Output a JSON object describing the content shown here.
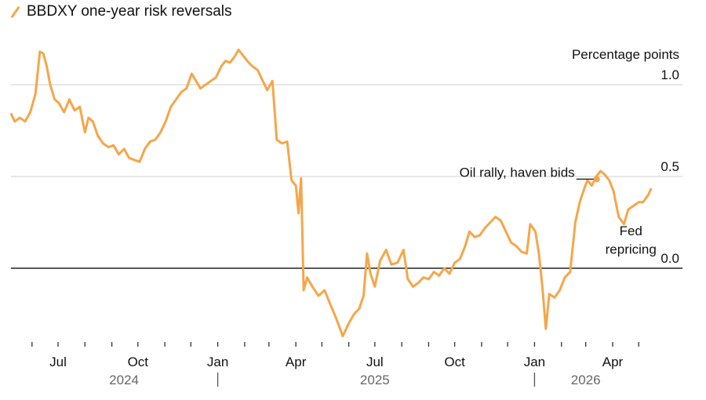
{
  "legend": {
    "label": "BBDXY one-year risk reversals",
    "icon": "line-swatch-icon"
  },
  "chart_data": {
    "type": "line",
    "title": "",
    "ylabel": "Percentage points",
    "ylim": [
      -0.75,
      1.45
    ],
    "yticks": [
      {
        "value": 1.0,
        "label": "1.0"
      },
      {
        "value": 0.5,
        "label": "0.5"
      },
      {
        "value": 0.0,
        "label": "0.0"
      }
    ],
    "xticks": [
      {
        "date": "2024-07-01",
        "label": "Jul"
      },
      {
        "date": "2024-10-01",
        "label": "Oct"
      },
      {
        "date": "2025-01-01",
        "label": "Jan"
      },
      {
        "date": "2025-04-01",
        "label": "Apr"
      },
      {
        "date": "2025-07-01",
        "label": "Jul"
      },
      {
        "date": "2025-10-01",
        "label": "Oct"
      },
      {
        "date": "2026-01-01",
        "label": "Jan"
      },
      {
        "date": "2026-04-01",
        "label": "Apr"
      }
    ],
    "years": [
      {
        "label": "2024",
        "center": "2024-09-15"
      },
      {
        "label": "2025",
        "center": "2025-07-01"
      },
      {
        "label": "2026",
        "center": "2026-03-01"
      }
    ],
    "year_separators": [
      "2025-01-01",
      "2026-01-01"
    ],
    "x_range": [
      "2024-05-01",
      "2026-06-25"
    ],
    "zero_line": 0.0,
    "grid": true,
    "color": "#f5a64a",
    "series": [
      {
        "points": [
          [
            "2024-05-08",
            0.84
          ],
          [
            "2024-05-12",
            0.8
          ],
          [
            "2024-05-18",
            0.82
          ],
          [
            "2024-05-24",
            0.8
          ],
          [
            "2024-05-30",
            0.85
          ],
          [
            "2024-06-05",
            0.95
          ],
          [
            "2024-06-10",
            1.18
          ],
          [
            "2024-06-14",
            1.17
          ],
          [
            "2024-06-18",
            1.1
          ],
          [
            "2024-06-22",
            1.0
          ],
          [
            "2024-06-27",
            0.92
          ],
          [
            "2024-07-02",
            0.9
          ],
          [
            "2024-07-08",
            0.85
          ],
          [
            "2024-07-14",
            0.92
          ],
          [
            "2024-07-20",
            0.86
          ],
          [
            "2024-07-26",
            0.88
          ],
          [
            "2024-08-01",
            0.74
          ],
          [
            "2024-08-05",
            0.82
          ],
          [
            "2024-08-10",
            0.8
          ],
          [
            "2024-08-16",
            0.72
          ],
          [
            "2024-08-22",
            0.68
          ],
          [
            "2024-08-28",
            0.66
          ],
          [
            "2024-09-03",
            0.67
          ],
          [
            "2024-09-09",
            0.62
          ],
          [
            "2024-09-15",
            0.65
          ],
          [
            "2024-09-21",
            0.6
          ],
          [
            "2024-09-27",
            0.59
          ],
          [
            "2024-10-03",
            0.58
          ],
          [
            "2024-10-09",
            0.65
          ],
          [
            "2024-10-15",
            0.69
          ],
          [
            "2024-10-21",
            0.7
          ],
          [
            "2024-10-27",
            0.74
          ],
          [
            "2024-11-02",
            0.8
          ],
          [
            "2024-11-08",
            0.88
          ],
          [
            "2024-11-14",
            0.92
          ],
          [
            "2024-11-20",
            0.96
          ],
          [
            "2024-11-26",
            0.98
          ],
          [
            "2024-12-02",
            1.06
          ],
          [
            "2024-12-07",
            1.02
          ],
          [
            "2024-12-12",
            0.98
          ],
          [
            "2024-12-18",
            1.0
          ],
          [
            "2024-12-24",
            1.02
          ],
          [
            "2024-12-30",
            1.04
          ],
          [
            "2025-01-05",
            1.1
          ],
          [
            "2025-01-10",
            1.13
          ],
          [
            "2025-01-15",
            1.12
          ],
          [
            "2025-01-20",
            1.15
          ],
          [
            "2025-01-25",
            1.19
          ],
          [
            "2025-01-30",
            1.16
          ],
          [
            "2025-02-04",
            1.13
          ],
          [
            "2025-02-10",
            1.1
          ],
          [
            "2025-02-16",
            1.08
          ],
          [
            "2025-02-22",
            1.02
          ],
          [
            "2025-02-27",
            0.97
          ],
          [
            "2025-03-05",
            1.02
          ],
          [
            "2025-03-10",
            0.7
          ],
          [
            "2025-03-16",
            0.68
          ],
          [
            "2025-03-22",
            0.69
          ],
          [
            "2025-03-27",
            0.48
          ],
          [
            "2025-04-01",
            0.45
          ],
          [
            "2025-04-04",
            0.3
          ],
          [
            "2025-04-07",
            0.49
          ],
          [
            "2025-04-10",
            -0.12
          ],
          [
            "2025-04-14",
            -0.05
          ],
          [
            "2025-04-20",
            -0.1
          ],
          [
            "2025-04-27",
            -0.15
          ],
          [
            "2025-05-04",
            -0.12
          ],
          [
            "2025-05-11",
            -0.2
          ],
          [
            "2025-05-18",
            -0.28
          ],
          [
            "2025-05-25",
            -0.37
          ],
          [
            "2025-06-01",
            -0.3
          ],
          [
            "2025-06-07",
            -0.25
          ],
          [
            "2025-06-13",
            -0.22
          ],
          [
            "2025-06-18",
            -0.15
          ],
          [
            "2025-06-22",
            0.08
          ],
          [
            "2025-06-26",
            -0.03
          ],
          [
            "2025-07-01",
            -0.1
          ],
          [
            "2025-07-07",
            0.04
          ],
          [
            "2025-07-14",
            0.1
          ],
          [
            "2025-07-20",
            0.02
          ],
          [
            "2025-07-27",
            0.03
          ],
          [
            "2025-08-03",
            0.1
          ],
          [
            "2025-08-08",
            -0.06
          ],
          [
            "2025-08-14",
            -0.1
          ],
          [
            "2025-08-20",
            -0.08
          ],
          [
            "2025-08-26",
            -0.05
          ],
          [
            "2025-09-01",
            -0.06
          ],
          [
            "2025-09-07",
            -0.02
          ],
          [
            "2025-09-13",
            -0.04
          ],
          [
            "2025-09-19",
            0.0
          ],
          [
            "2025-09-25",
            -0.03
          ],
          [
            "2025-10-01",
            0.03
          ],
          [
            "2025-10-07",
            0.05
          ],
          [
            "2025-10-13",
            0.12
          ],
          [
            "2025-10-18",
            0.2
          ],
          [
            "2025-10-24",
            0.17
          ],
          [
            "2025-10-30",
            0.18
          ],
          [
            "2025-11-05",
            0.22
          ],
          [
            "2025-11-11",
            0.25
          ],
          [
            "2025-11-17",
            0.28
          ],
          [
            "2025-11-23",
            0.26
          ],
          [
            "2025-11-29",
            0.2
          ],
          [
            "2025-12-05",
            0.14
          ],
          [
            "2025-12-11",
            0.12
          ],
          [
            "2025-12-17",
            0.09
          ],
          [
            "2025-12-23",
            0.08
          ],
          [
            "2025-12-27",
            0.24
          ],
          [
            "2026-01-02",
            0.2
          ],
          [
            "2026-01-06",
            0.08
          ],
          [
            "2026-01-10",
            -0.1
          ],
          [
            "2026-01-14",
            -0.33
          ],
          [
            "2026-01-18",
            -0.14
          ],
          [
            "2026-01-24",
            -0.16
          ],
          [
            "2026-01-30",
            -0.12
          ],
          [
            "2026-02-05",
            -0.05
          ],
          [
            "2026-02-11",
            -0.02
          ],
          [
            "2026-02-17",
            0.25
          ],
          [
            "2026-02-22",
            0.36
          ],
          [
            "2026-02-27",
            0.43
          ],
          [
            "2026-03-03",
            0.48
          ],
          [
            "2026-03-08",
            0.45
          ],
          [
            "2026-03-13",
            0.5
          ],
          [
            "2026-03-18",
            0.53
          ],
          [
            "2026-03-23",
            0.51
          ],
          [
            "2026-03-28",
            0.48
          ],
          [
            "2026-04-02",
            0.42
          ],
          [
            "2026-04-08",
            0.28
          ],
          [
            "2026-04-14",
            0.24
          ],
          [
            "2026-04-19",
            0.32
          ],
          [
            "2026-04-25",
            0.34
          ],
          [
            "2026-05-01",
            0.36
          ],
          [
            "2026-05-06",
            0.36
          ],
          [
            "2026-05-12",
            0.4
          ],
          [
            "2026-05-15",
            0.43
          ]
        ]
      }
    ],
    "annotations": [
      {
        "text": "Oil rally, haven bids",
        "date": "2026-03-10",
        "value": 0.49
      },
      {
        "text": "Fed",
        "date": "2026-04-22",
        "value": 0.18
      },
      {
        "text": "repricing",
        "date": "2026-04-22",
        "value": 0.08
      }
    ]
  }
}
